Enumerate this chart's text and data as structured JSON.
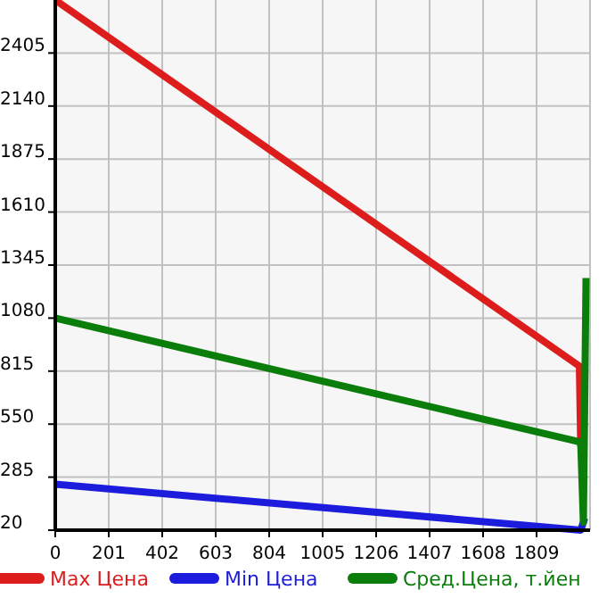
{
  "chart_data": {
    "type": "line",
    "x": [
      0,
      1970,
      1975
    ],
    "xlim": [
      0,
      2010
    ],
    "ylim": [
      20,
      2670
    ],
    "xticks": [
      0,
      201,
      402,
      603,
      804,
      1005,
      1206,
      1407,
      1608,
      1809
    ],
    "yticks": [
      20,
      285,
      550,
      815,
      1080,
      1345,
      1610,
      1875,
      2140,
      2405
    ],
    "grid": true,
    "legend": "bottom",
    "line_style": "solid",
    "series": [
      {
        "name": "Max Цена",
        "color": "#dd1c1c",
        "values": [
          2670,
          840,
          440
        ]
      },
      {
        "name": "Min Цена",
        "color": "#1c1cdd",
        "x": [
          0,
          1975,
          1990
        ],
        "values": [
          250,
          20,
          80
        ]
      },
      {
        "name": "Сред.Цена, т.йен",
        "color": "#0a7d0a",
        "x": [
          0,
          1975,
          1985,
          1995
        ],
        "values": [
          1080,
          460,
          60,
          1280
        ]
      }
    ]
  }
}
